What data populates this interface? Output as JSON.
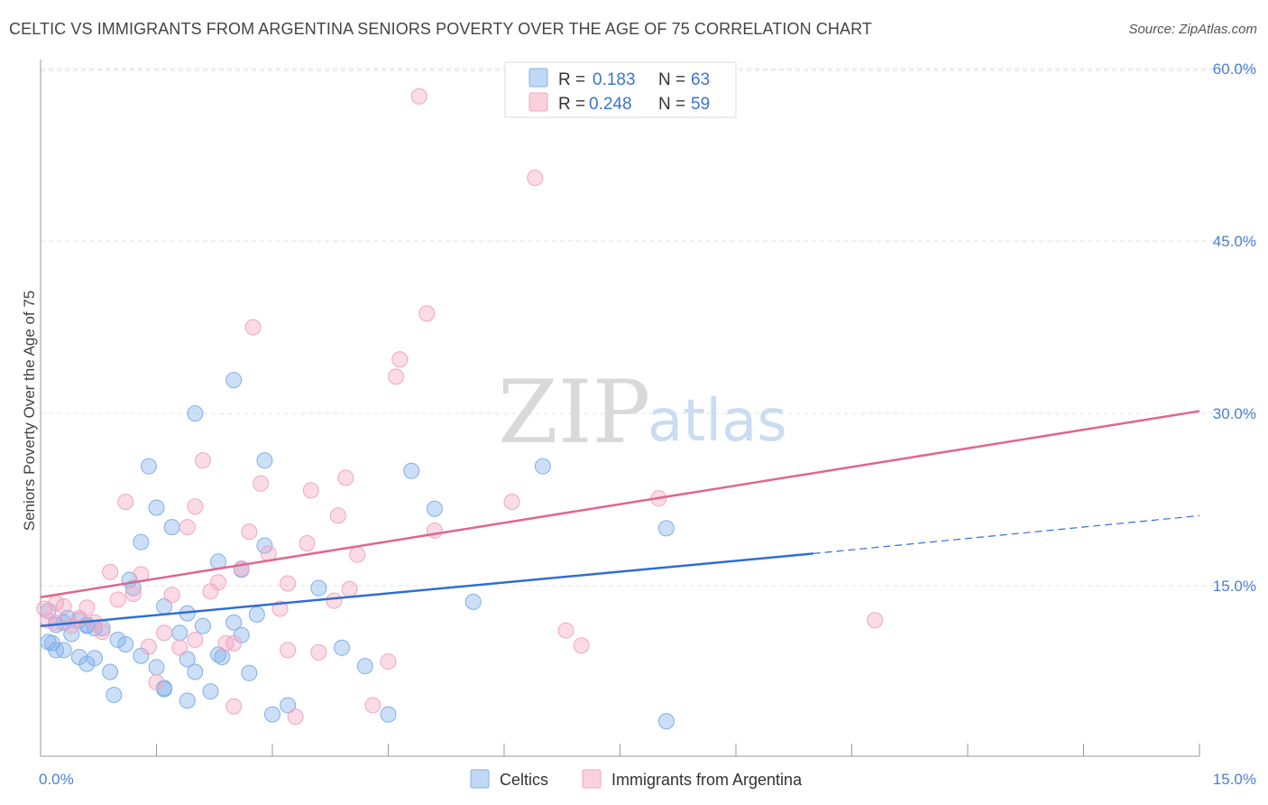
{
  "header": {
    "title": "CELTIC VS IMMIGRANTS FROM ARGENTINA SENIORS POVERTY OVER THE AGE OF 75 CORRELATION CHART",
    "source": "Source: ZipAtlas.com"
  },
  "watermark": {
    "zip": "ZIP",
    "atlas": "atlas"
  },
  "legend": {
    "rows": [
      {
        "r_label": "R =",
        "r_value": "0.183",
        "n_label": "N =",
        "n_value": "63",
        "color": "#9dc3f0"
      },
      {
        "r_label": "R =",
        "r_value": "0.248",
        "n_label": "N =",
        "n_value": "59",
        "color": "#f5b3c8"
      }
    ]
  },
  "bottom_legend": [
    {
      "label": "Celtics",
      "color": "#9dc3f0"
    },
    {
      "label": "Immigrants from Argentina",
      "color": "#f5b3c8"
    }
  ],
  "chart_data": {
    "type": "scatter",
    "title": "CELTIC VS IMMIGRANTS FROM ARGENTINA SENIORS POVERTY OVER THE AGE OF 75 CORRELATION CHART",
    "xlabel": "",
    "ylabel": "Seniors Poverty Over the Age of 75",
    "xlim": [
      0,
      15
    ],
    "ylim": [
      0,
      62
    ],
    "x_tick_labels": [
      "0.0%",
      "15.0%"
    ],
    "y_ticks": [
      15,
      30,
      45,
      60
    ],
    "y_tick_labels": [
      "15.0%",
      "30.0%",
      "45.0%",
      "60.0%"
    ],
    "grid": true,
    "legend_position": "top-center",
    "series": [
      {
        "name": "Celtics",
        "color": "#7fb0ea",
        "line_color": "#2f6fd0",
        "trend": {
          "x0": 0,
          "y0": 11.5,
          "x1": 10,
          "y1": 17.8,
          "x_dash_end": 15,
          "y_dash_end": 21.1
        },
        "points": [
          [
            0.1,
            12.8
          ],
          [
            0.1,
            10.1
          ],
          [
            0.2,
            9.4
          ],
          [
            0.2,
            11.6
          ],
          [
            0.3,
            11.8
          ],
          [
            0.3,
            9.4
          ],
          [
            0.4,
            10.8
          ],
          [
            0.5,
            8.8
          ],
          [
            0.5,
            12.0
          ],
          [
            0.6,
            11.6
          ],
          [
            0.6,
            8.2
          ],
          [
            0.7,
            8.7
          ],
          [
            0.7,
            11.3
          ],
          [
            0.8,
            11.3
          ],
          [
            0.9,
            7.5
          ],
          [
            1.0,
            10.3
          ],
          [
            1.1,
            9.9
          ],
          [
            1.15,
            15.5
          ],
          [
            1.2,
            14.8
          ],
          [
            1.3,
            18.8
          ],
          [
            1.3,
            8.9
          ],
          [
            1.4,
            25.4
          ],
          [
            1.5,
            21.8
          ],
          [
            1.5,
            7.9
          ],
          [
            1.6,
            13.2
          ],
          [
            1.6,
            6.0
          ],
          [
            1.7,
            20.1
          ],
          [
            1.8,
            10.9
          ],
          [
            1.9,
            12.6
          ],
          [
            1.9,
            8.6
          ],
          [
            1.9,
            5.0
          ],
          [
            2.0,
            30.0
          ],
          [
            2.0,
            7.5
          ],
          [
            2.1,
            11.5
          ],
          [
            2.2,
            5.8
          ],
          [
            2.3,
            17.1
          ],
          [
            2.3,
            9.0
          ],
          [
            2.35,
            8.8
          ],
          [
            2.5,
            11.8
          ],
          [
            2.5,
            32.9
          ],
          [
            2.6,
            16.4
          ],
          [
            2.6,
            10.7
          ],
          [
            2.7,
            7.4
          ],
          [
            2.8,
            12.5
          ],
          [
            2.9,
            18.5
          ],
          [
            2.9,
            25.9
          ],
          [
            3.0,
            3.8
          ],
          [
            3.2,
            4.6
          ],
          [
            3.6,
            14.8
          ],
          [
            3.9,
            9.6
          ],
          [
            4.2,
            8.0
          ],
          [
            4.5,
            3.8
          ],
          [
            4.8,
            25.0
          ],
          [
            5.1,
            21.7
          ],
          [
            5.6,
            13.6
          ],
          [
            6.5,
            25.4
          ],
          [
            8.1,
            3.2
          ],
          [
            8.1,
            20.0
          ],
          [
            0.15,
            10.0
          ],
          [
            0.6,
            11.5
          ],
          [
            0.95,
            5.5
          ],
          [
            1.6,
            6.1
          ],
          [
            0.35,
            12.2
          ]
        ]
      },
      {
        "name": "Immigrants from Argentina",
        "color": "#f2a6c0",
        "line_color": "#e0668f",
        "trend": {
          "x0": 0,
          "y0": 14.0,
          "x1": 15,
          "y1": 30.2
        },
        "points": [
          [
            0.05,
            13.0
          ],
          [
            0.1,
            12.0
          ],
          [
            0.2,
            13.5
          ],
          [
            0.2,
            11.8
          ],
          [
            0.3,
            13.2
          ],
          [
            0.4,
            11.5
          ],
          [
            0.5,
            12.2
          ],
          [
            0.6,
            13.1
          ],
          [
            0.7,
            11.8
          ],
          [
            0.8,
            11.0
          ],
          [
            0.9,
            16.2
          ],
          [
            1.0,
            13.8
          ],
          [
            1.1,
            22.3
          ],
          [
            1.2,
            14.3
          ],
          [
            1.3,
            16.0
          ],
          [
            1.4,
            9.7
          ],
          [
            1.5,
            6.6
          ],
          [
            1.6,
            10.9
          ],
          [
            1.7,
            14.2
          ],
          [
            1.8,
            9.6
          ],
          [
            1.9,
            20.1
          ],
          [
            2.0,
            21.9
          ],
          [
            2.0,
            10.3
          ],
          [
            2.1,
            25.9
          ],
          [
            2.2,
            14.5
          ],
          [
            2.3,
            15.3
          ],
          [
            2.4,
            10.0
          ],
          [
            2.5,
            10.0
          ],
          [
            2.5,
            4.5
          ],
          [
            2.6,
            16.5
          ],
          [
            2.7,
            19.7
          ],
          [
            2.75,
            37.5
          ],
          [
            2.85,
            23.9
          ],
          [
            2.95,
            17.8
          ],
          [
            3.1,
            13.0
          ],
          [
            3.2,
            15.2
          ],
          [
            3.2,
            9.4
          ],
          [
            3.3,
            3.6
          ],
          [
            3.45,
            18.7
          ],
          [
            3.5,
            23.3
          ],
          [
            3.6,
            9.2
          ],
          [
            3.8,
            13.7
          ],
          [
            3.85,
            21.1
          ],
          [
            3.95,
            24.4
          ],
          [
            4.0,
            14.7
          ],
          [
            4.1,
            17.7
          ],
          [
            4.3,
            4.6
          ],
          [
            4.5,
            8.4
          ],
          [
            4.6,
            33.2
          ],
          [
            4.65,
            34.7
          ],
          [
            4.9,
            57.6
          ],
          [
            5.0,
            38.7
          ],
          [
            5.1,
            19.8
          ],
          [
            6.1,
            22.3
          ],
          [
            6.4,
            50.5
          ],
          [
            6.8,
            11.1
          ],
          [
            7.0,
            9.8
          ],
          [
            8.0,
            22.6
          ],
          [
            10.8,
            12.0
          ]
        ]
      }
    ]
  }
}
